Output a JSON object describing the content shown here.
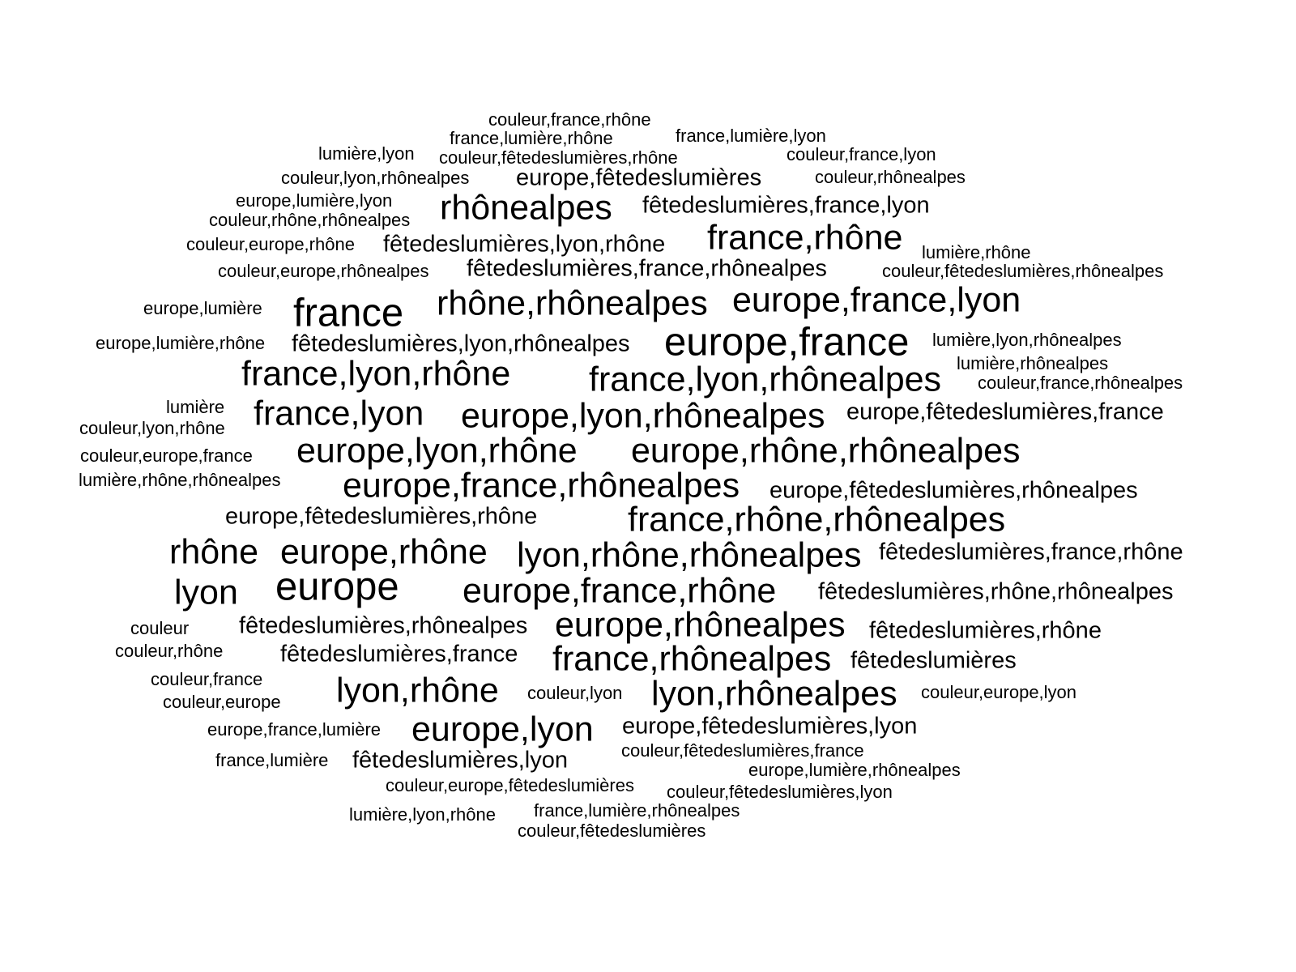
{
  "text_color": "#000000",
  "background_color": "#ffffff",
  "words": [
    {
      "text": "couleur,france,rhône",
      "weight": 1
    },
    {
      "text": "france,lumière,rhône",
      "weight": 1
    },
    {
      "text": "france,lumière,lyon",
      "weight": 1
    },
    {
      "text": "lumière,lyon",
      "weight": 1
    },
    {
      "text": "couleur,fêtedeslumières,rhône",
      "weight": 1
    },
    {
      "text": "couleur,france,lyon",
      "weight": 1
    },
    {
      "text": "couleur,lyon,rhônealpes",
      "weight": 1
    },
    {
      "text": "europe,fêtedeslumières",
      "weight": 2
    },
    {
      "text": "couleur,rhônealpes",
      "weight": 1
    },
    {
      "text": "europe,lumière,lyon",
      "weight": 1
    },
    {
      "text": "rhônealpes",
      "weight": 4
    },
    {
      "text": "fêtedeslumières,france,lyon",
      "weight": 2
    },
    {
      "text": "couleur,rhône,rhônealpes",
      "weight": 1
    },
    {
      "text": "couleur,europe,rhône",
      "weight": 1
    },
    {
      "text": "fêtedeslumières,lyon,rhône",
      "weight": 2
    },
    {
      "text": "france,rhône",
      "weight": 4
    },
    {
      "text": "lumière,rhône",
      "weight": 1
    },
    {
      "text": "couleur,europe,rhônealpes",
      "weight": 1
    },
    {
      "text": "fêtedeslumières,france,rhônealpes",
      "weight": 2
    },
    {
      "text": "couleur,fêtedeslumières,rhônealpes",
      "weight": 1
    },
    {
      "text": "europe,lumière",
      "weight": 1
    },
    {
      "text": "france",
      "weight": 5
    },
    {
      "text": "rhône,rhônealpes",
      "weight": 4
    },
    {
      "text": "europe,france,lyon",
      "weight": 4
    },
    {
      "text": "europe,lumière,rhône",
      "weight": 1
    },
    {
      "text": "fêtedeslumières,lyon,rhônealpes",
      "weight": 2
    },
    {
      "text": "europe,france",
      "weight": 5
    },
    {
      "text": "lumière,lyon,rhônealpes",
      "weight": 1
    },
    {
      "text": "lumière,rhônealpes",
      "weight": 1
    },
    {
      "text": "france,lyon,rhône",
      "weight": 4
    },
    {
      "text": "france,lyon,rhônealpes",
      "weight": 4
    },
    {
      "text": "couleur,france,rhônealpes",
      "weight": 1
    },
    {
      "text": "lumière",
      "weight": 1
    },
    {
      "text": "france,lyon",
      "weight": 4
    },
    {
      "text": "europe,lyon,rhônealpes",
      "weight": 4
    },
    {
      "text": "europe,fêtedeslumières,france",
      "weight": 2
    },
    {
      "text": "couleur,lyon,rhône",
      "weight": 1
    },
    {
      "text": "couleur,europe,france",
      "weight": 1
    },
    {
      "text": "europe,lyon,rhône",
      "weight": 4
    },
    {
      "text": "europe,rhône,rhônealpes",
      "weight": 4
    },
    {
      "text": "lumière,rhône,rhônealpes",
      "weight": 1
    },
    {
      "text": "europe,france,rhônealpes",
      "weight": 4
    },
    {
      "text": "europe,fêtedeslumières,rhônealpes",
      "weight": 2
    },
    {
      "text": "europe,fêtedeslumières,rhône",
      "weight": 2
    },
    {
      "text": "france,rhône,rhônealpes",
      "weight": 4
    },
    {
      "text": "rhône",
      "weight": 4
    },
    {
      "text": "europe,rhône",
      "weight": 4
    },
    {
      "text": "lyon,rhône,rhônealpes",
      "weight": 4
    },
    {
      "text": "fêtedeslumières,france,rhône",
      "weight": 2
    },
    {
      "text": "lyon",
      "weight": 4
    },
    {
      "text": "europe",
      "weight": 5
    },
    {
      "text": "europe,france,rhône",
      "weight": 4
    },
    {
      "text": "fêtedeslumières,rhône,rhônealpes",
      "weight": 2
    },
    {
      "text": "couleur",
      "weight": 1
    },
    {
      "text": "fêtedeslumières,rhônealpes",
      "weight": 2
    },
    {
      "text": "europe,rhônealpes",
      "weight": 4
    },
    {
      "text": "fêtedeslumières,rhône",
      "weight": 2
    },
    {
      "text": "couleur,rhône",
      "weight": 1
    },
    {
      "text": "fêtedeslumières,france",
      "weight": 2
    },
    {
      "text": "france,rhônealpes",
      "weight": 4
    },
    {
      "text": "fêtedeslumières",
      "weight": 2
    },
    {
      "text": "couleur,france",
      "weight": 1
    },
    {
      "text": "lyon,rhône",
      "weight": 4
    },
    {
      "text": "couleur,lyon",
      "weight": 1
    },
    {
      "text": "lyon,rhônealpes",
      "weight": 4
    },
    {
      "text": "couleur,europe,lyon",
      "weight": 1
    },
    {
      "text": "couleur,europe",
      "weight": 1
    },
    {
      "text": "europe,france,lumière",
      "weight": 1
    },
    {
      "text": "europe,lyon",
      "weight": 4
    },
    {
      "text": "europe,fêtedeslumières,lyon",
      "weight": 2
    },
    {
      "text": "couleur,fêtedeslumières,france",
      "weight": 1
    },
    {
      "text": "france,lumière",
      "weight": 1
    },
    {
      "text": "fêtedeslumières,lyon",
      "weight": 2
    },
    {
      "text": "europe,lumière,rhônealpes",
      "weight": 1
    },
    {
      "text": "couleur,europe,fêtedeslumières",
      "weight": 1
    },
    {
      "text": "couleur,fêtedeslumières,lyon",
      "weight": 1
    },
    {
      "text": "lumière,lyon,rhône",
      "weight": 1
    },
    {
      "text": "france,lumière,rhônealpes",
      "weight": 1
    },
    {
      "text": "couleur,fêtedeslumières",
      "weight": 1
    }
  ]
}
